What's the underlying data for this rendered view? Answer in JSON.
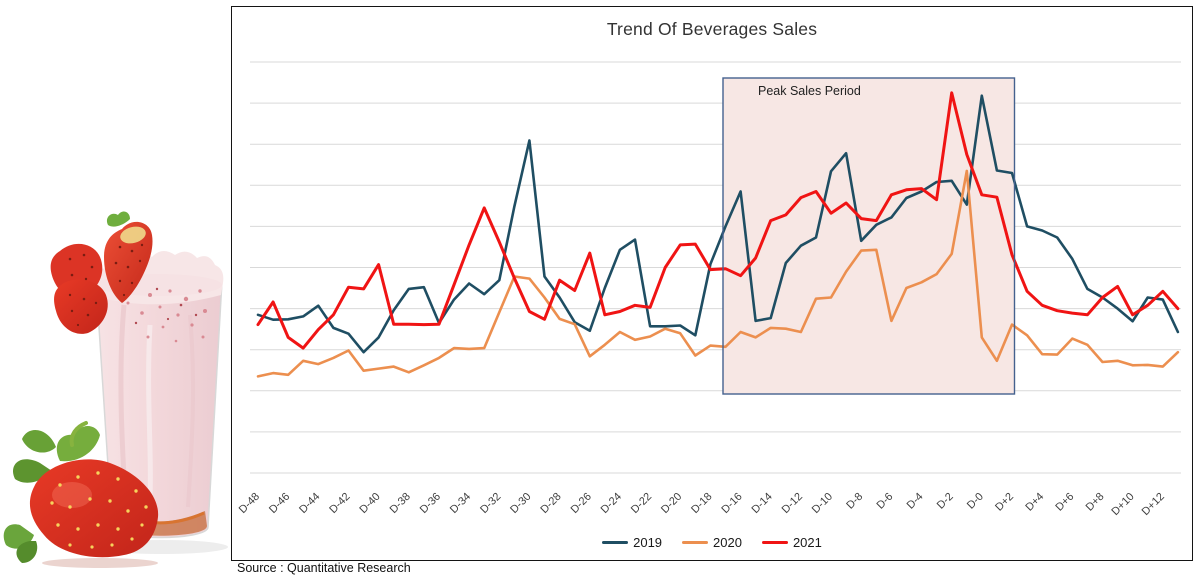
{
  "chart": {
    "title": "Trend Of Beverages Sales"
  },
  "source": "Source : Quantitative Research",
  "photo_alt": "strawberry-milkshake-photo",
  "chart_data": {
    "type": "line",
    "title": "Trend Of Beverages Sales",
    "xlabel": "",
    "ylabel": "",
    "ylim": [
      0,
      100
    ],
    "grid": true,
    "grid_color": "#d9d9d9",
    "legend_position": "bottom",
    "x_tick_step": 2,
    "x": [
      "D-48",
      "D-47",
      "D-46",
      "D-45",
      "D-44",
      "D-43",
      "D-42",
      "D-41",
      "D-40",
      "D-39",
      "D-38",
      "D-37",
      "D-36",
      "D-35",
      "D-34",
      "D-33",
      "D-32",
      "D-31",
      "D-30",
      "D-29",
      "D-28",
      "D-27",
      "D-26",
      "D-25",
      "D-24",
      "D-23",
      "D-22",
      "D-21",
      "D-20",
      "D-19",
      "D-18",
      "D-17",
      "D-16",
      "D-15",
      "D-14",
      "D-13",
      "D-12",
      "D-11",
      "D-10",
      "D-9",
      "D-8",
      "D-7",
      "D-6",
      "D-5",
      "D-4",
      "D-3",
      "D-2",
      "D-1",
      "D-0",
      "D+1",
      "D+2",
      "D+3",
      "D+4",
      "D+5",
      "D+6",
      "D+7",
      "D+8",
      "D+9",
      "D+10",
      "D+11",
      "D+12",
      "D+13"
    ],
    "series": [
      {
        "name": "2019",
        "color": "#1f4e63",
        "values": [
          38.5,
          37.3,
          37.4,
          38.1,
          40.7,
          35.3,
          33.9,
          29.4,
          33,
          39.6,
          44.8,
          45.2,
          36.5,
          42.2,
          46.1,
          43.5,
          46.9,
          64.9,
          80.9,
          47.8,
          42.7,
          36.7,
          34.6,
          45,
          54.3,
          56.8,
          35.7,
          35.7,
          35.9,
          33.5,
          50.8,
          60,
          68.5,
          37,
          37.7,
          51.1,
          55.3,
          57.3,
          73.4,
          77.8,
          56.5,
          60.4,
          62.2,
          66.9,
          68.5,
          70.8,
          71.1,
          65.3,
          91.8,
          73.6,
          73,
          60,
          59,
          57.3,
          52.1,
          44.8,
          42.7,
          40,
          36.9,
          42.7,
          42.2,
          34.3
        ]
      },
      {
        "name": "2020",
        "color": "#ec8f4f",
        "values": [
          23.5,
          24.3,
          23.9,
          27.3,
          26.5,
          28,
          29.8,
          24.9,
          25.4,
          25.9,
          24.5,
          26.2,
          28,
          30.4,
          30.2,
          30.4,
          39.1,
          47.8,
          47.3,
          42.7,
          37.5,
          36.2,
          28.4,
          31.2,
          34.3,
          32.4,
          33.2,
          35.1,
          34,
          28.6,
          31,
          30.7,
          34.3,
          33,
          35.3,
          35.1,
          34.3,
          42.4,
          42.7,
          49,
          54.1,
          54.3,
          37,
          45,
          46.4,
          48.4,
          53.3,
          73.5,
          33,
          27.3,
          36.1,
          33.5,
          28.9,
          28.8,
          32.7,
          31.2,
          27,
          27.3,
          26.2,
          26.3,
          25.9,
          29.4
        ]
      },
      {
        "name": "2021",
        "color": "#f01414",
        "values": [
          36.1,
          41.6,
          33,
          30.4,
          34.9,
          38.5,
          45.2,
          44.8,
          50.7,
          36.2,
          36.2,
          36.1,
          36.2,
          45.8,
          55.5,
          64.5,
          56.2,
          47.4,
          39.3,
          37.4,
          46.9,
          44.4,
          53.5,
          38.5,
          39.3,
          40.8,
          40.3,
          50,
          55.5,
          55.7,
          49.5,
          49.7,
          48,
          52.3,
          61.4,
          62.8,
          67,
          68.5,
          63.2,
          65.7,
          61.9,
          61.4,
          67.7,
          68.9,
          69.2,
          66.5,
          92.5,
          77.5,
          67.7,
          67.1,
          53.1,
          44.2,
          40.8,
          39.5,
          38.9,
          38.5,
          42.7,
          45.4,
          38.5,
          40.8,
          44.2,
          40
        ]
      }
    ],
    "highlight_region": {
      "label": "Peak Sales Period",
      "from": "D-17",
      "to": "D+2",
      "fill": "#f7e7e4",
      "border": "#44618e"
    }
  }
}
